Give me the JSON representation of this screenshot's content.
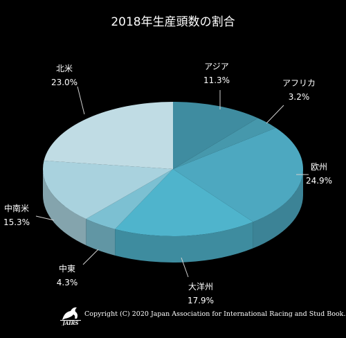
{
  "chart_data": {
    "type": "pie",
    "title": "2018年生産頭数の割合",
    "slices": [
      {
        "label": "アジア",
        "value": 11.3,
        "value_label": "11.3%",
        "color": "#3f8ca0"
      },
      {
        "label": "アフリカ",
        "value": 3.2,
        "value_label": "3.2%",
        "color": "#4698ac"
      },
      {
        "label": "欧州",
        "value": 24.9,
        "value_label": "24.9%",
        "color": "#4da8c0"
      },
      {
        "label": "大洋州",
        "value": 17.9,
        "value_label": "17.9%",
        "color": "#4fb4cc"
      },
      {
        "label": "中東",
        "value": 4.3,
        "value_label": "4.3%",
        "color": "#7cc0d2"
      },
      {
        "label": "中南米",
        "value": 15.3,
        "value_label": "15.3%",
        "color": "#a9d2de"
      },
      {
        "label": "北米",
        "value": 23.0,
        "value_label": "23.0%",
        "color": "#c0dce4"
      }
    ],
    "style": "3d"
  },
  "footer": {
    "copyright": "Copyright (C) 2020 Japan Association for International Racing and Stud Book.",
    "logo_text": "JAIRS"
  }
}
